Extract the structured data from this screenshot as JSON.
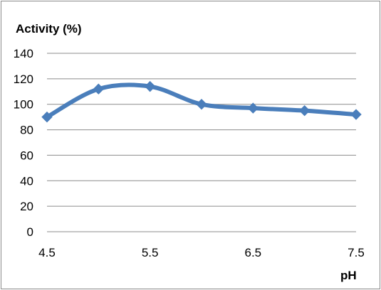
{
  "chart_data": {
    "type": "line",
    "title": "",
    "xlabel": "pH",
    "ylabel": "Activity (%)",
    "x": [
      4.5,
      5,
      5.5,
      6,
      6.5,
      7,
      7.5
    ],
    "series": [
      {
        "values": [
          90,
          112,
          114,
          100,
          97,
          95,
          92
        ]
      }
    ],
    "xlim": [
      4.5,
      7.5
    ],
    "ylim": [
      0,
      140
    ],
    "x_tick_labels": [
      "4.5",
      "5.5",
      "6.5",
      "7.5"
    ],
    "y_tick_labels": [
      "0",
      "20",
      "40",
      "60",
      "80",
      "100",
      "120",
      "140"
    ],
    "grid": "horizontal",
    "line_style": "smoothed",
    "marker": "diamond",
    "series_color": "#4a7ebb",
    "grid_color": "#8c8c8c"
  }
}
